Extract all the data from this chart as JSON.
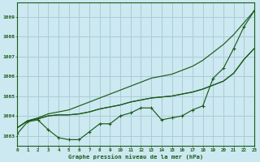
{
  "title": "Graphe pression niveau de la mer (hPa)",
  "background_color": "#cce8f0",
  "grid_color": "#aaccd8",
  "line_color": "#1a5c1a",
  "xlim": [
    0,
    23
  ],
  "ylim": [
    1002.5,
    1009.7
  ],
  "yticks": [
    1003,
    1004,
    1005,
    1006,
    1007,
    1008,
    1009
  ],
  "xticks": [
    0,
    1,
    2,
    3,
    4,
    5,
    6,
    7,
    8,
    9,
    10,
    11,
    12,
    13,
    14,
    15,
    16,
    17,
    18,
    19,
    20,
    21,
    22,
    23
  ],
  "line_marked": [
    1003.1,
    1003.7,
    1003.8,
    1003.3,
    1002.9,
    1002.8,
    1002.8,
    1003.2,
    1003.6,
    1003.6,
    1004.0,
    1004.15,
    1004.4,
    1004.4,
    1003.8,
    1003.9,
    1004.0,
    1004.3,
    1004.5,
    1005.9,
    1006.4,
    1007.4,
    1008.5,
    1009.3
  ],
  "line_smooth1": [
    1003.4,
    1003.75,
    1003.85,
    1004.0,
    1004.05,
    1004.05,
    1004.1,
    1004.2,
    1004.35,
    1004.45,
    1004.55,
    1004.7,
    1004.8,
    1004.9,
    1004.95,
    1005.0,
    1005.1,
    1005.2,
    1005.35,
    1005.55,
    1005.75,
    1006.15,
    1006.85,
    1007.4
  ],
  "line_smooth2": [
    1003.4,
    1003.75,
    1003.85,
    1004.0,
    1004.05,
    1004.05,
    1004.1,
    1004.2,
    1004.35,
    1004.45,
    1004.55,
    1004.7,
    1004.8,
    1004.9,
    1004.95,
    1005.0,
    1005.1,
    1005.2,
    1005.35,
    1005.55,
    1005.75,
    1006.15,
    1006.85,
    1007.4
  ],
  "line_steep": [
    1003.4,
    1003.75,
    1003.9,
    1004.1,
    1004.2,
    1004.3,
    1004.5,
    1004.7,
    1004.9,
    1005.1,
    1005.3,
    1005.5,
    1005.7,
    1005.9,
    1006.0,
    1006.1,
    1006.3,
    1006.5,
    1006.8,
    1007.2,
    1007.6,
    1008.1,
    1008.7,
    1009.3
  ]
}
